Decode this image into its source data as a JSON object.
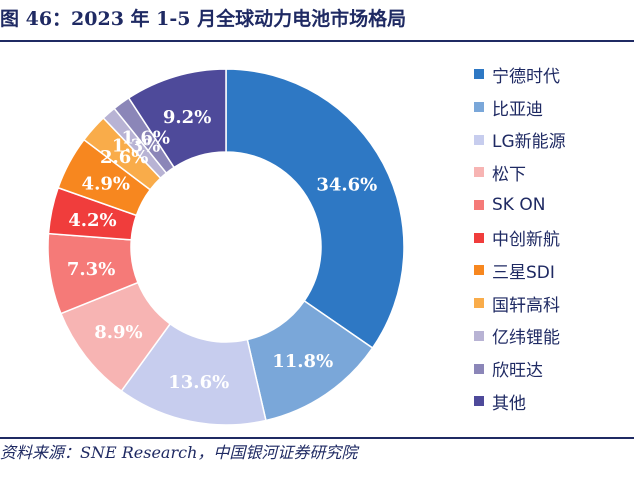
{
  "title": "图 46：2023 年 1-5 月全球动力电池市场格局",
  "source": "资料来源：SNE Research，中国银河证券研究院",
  "chart_data": {
    "type": "pie",
    "donut": true,
    "title": "图 46：2023 年 1-5 月全球动力电池市场格局",
    "legend_position": "right",
    "labels_format": "percent",
    "slices": [
      {
        "name": "宁德时代",
        "value": 34.6,
        "label": "34.6%",
        "color": "#2e78c4"
      },
      {
        "name": "比亚迪",
        "value": 11.8,
        "label": "11.8%",
        "color": "#7aa7d9"
      },
      {
        "name": "LG新能源",
        "value": 13.6,
        "label": "13.6%",
        "color": "#c7cdee"
      },
      {
        "name": "松下",
        "value": 8.9,
        "label": "8.9%",
        "color": "#f7b4b3"
      },
      {
        "name": "SK ON",
        "value": 7.3,
        "label": "7.3%",
        "color": "#f57a78"
      },
      {
        "name": "中创新航",
        "value": 4.2,
        "label": "4.2%",
        "color": "#f03d3c"
      },
      {
        "name": "三星SDI",
        "value": 4.9,
        "label": "4.9%",
        "color": "#f7871f"
      },
      {
        "name": "国轩高科",
        "value": 2.6,
        "label": "2.6%",
        "color": "#f9ac4a"
      },
      {
        "name": "亿纬锂能",
        "value": 1.3,
        "label": "1.3%",
        "color": "#b8b3d4"
      },
      {
        "name": "欣旺达",
        "value": 1.6,
        "label": "1.6%",
        "color": "#8b86b8"
      },
      {
        "name": "其他",
        "value": 9.2,
        "label": "9.2%",
        "color": "#4e4a9a"
      }
    ]
  }
}
